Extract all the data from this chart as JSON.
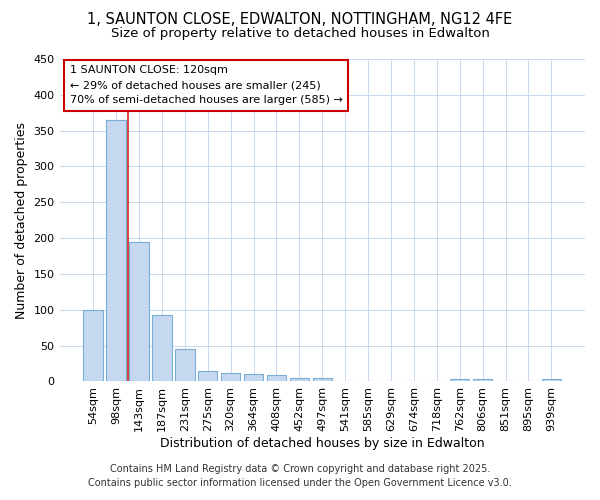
{
  "title_line1": "1, SAUNTON CLOSE, EDWALTON, NOTTINGHAM, NG12 4FE",
  "title_line2": "Size of property relative to detached houses in Edwalton",
  "xlabel": "Distribution of detached houses by size in Edwalton",
  "ylabel": "Number of detached properties",
  "bar_labels": [
    "54sqm",
    "98sqm",
    "143sqm",
    "187sqm",
    "231sqm",
    "275sqm",
    "320sqm",
    "364sqm",
    "408sqm",
    "452sqm",
    "497sqm",
    "541sqm",
    "585sqm",
    "629sqm",
    "674sqm",
    "718sqm",
    "762sqm",
    "806sqm",
    "851sqm",
    "895sqm",
    "939sqm"
  ],
  "bar_heights": [
    100,
    365,
    195,
    93,
    45,
    15,
    12,
    10,
    9,
    5,
    5,
    0,
    0,
    0,
    0,
    0,
    4,
    3,
    0,
    0,
    3
  ],
  "bar_color": "#c5d8f0",
  "bar_edge_color": "#7aadd4",
  "grid_color": "#c8d8ee",
  "background_color": "#ffffff",
  "plot_bg_color": "#ffffff",
  "red_line_x": 1.5,
  "annotation_text": "1 SAUNTON CLOSE: 120sqm\n← 29% of detached houses are smaller (245)\n70% of semi-detached houses are larger (585) →",
  "annotation_box_color": "#ffffff",
  "annotation_box_edge": "#cc0000",
  "ylim": [
    0,
    450
  ],
  "yticks": [
    0,
    50,
    100,
    150,
    200,
    250,
    300,
    350,
    400,
    450
  ],
  "footnote_line1": "Contains HM Land Registry data © Crown copyright and database right 2025.",
  "footnote_line2": "Contains public sector information licensed under the Open Government Licence v3.0.",
  "title_fontsize": 10.5,
  "subtitle_fontsize": 9.5,
  "axis_label_fontsize": 9,
  "tick_fontsize": 8,
  "annotation_fontsize": 8,
  "footnote_fontsize": 7
}
